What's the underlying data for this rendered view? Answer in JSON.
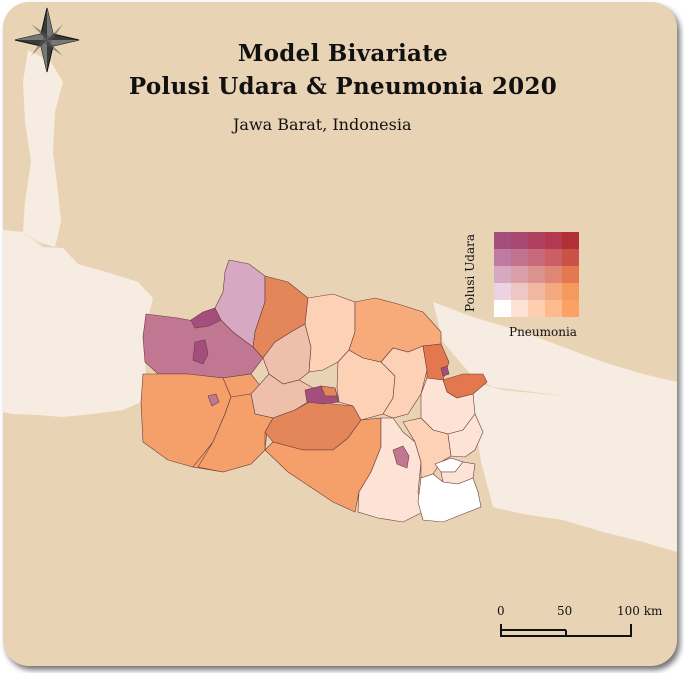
{
  "map": {
    "title_line1": "Model Bivariate",
    "title_line2": "Polusi Udara & Pneumonia 2020",
    "subtitle": "Jawa Barat, Indonesia",
    "colors": {
      "background_land": "#e9d3b5",
      "context_land": "#f6e9dc",
      "sea_light": "#f6ebe0"
    }
  },
  "legend": {
    "y_label": "Polusi Udara",
    "x_label": "Pneumonia",
    "grid_colors": [
      [
        "#a34e7d",
        "#a84972",
        "#b0405f",
        "#b2394f",
        "#b03035"
      ],
      [
        "#bd7ba1",
        "#c1728f",
        "#c86a7c",
        "#cb5f64",
        "#cc5145"
      ],
      [
        "#d6a8c2",
        "#d99ea8",
        "#dc928e",
        "#e08674",
        "#e3784f"
      ],
      [
        "#ebd3e1",
        "#eec6c3",
        "#f0b7a1",
        "#f3a982",
        "#f59a5c"
      ],
      [
        "#ffffff",
        "#fde3d5",
        "#fdcfb0",
        "#fdba8c",
        "#fda063"
      ]
    ]
  },
  "scale_bar": {
    "labels": [
      "0",
      "50",
      "100 km"
    ]
  },
  "compass": {
    "icon": "compass-star-icon"
  }
}
